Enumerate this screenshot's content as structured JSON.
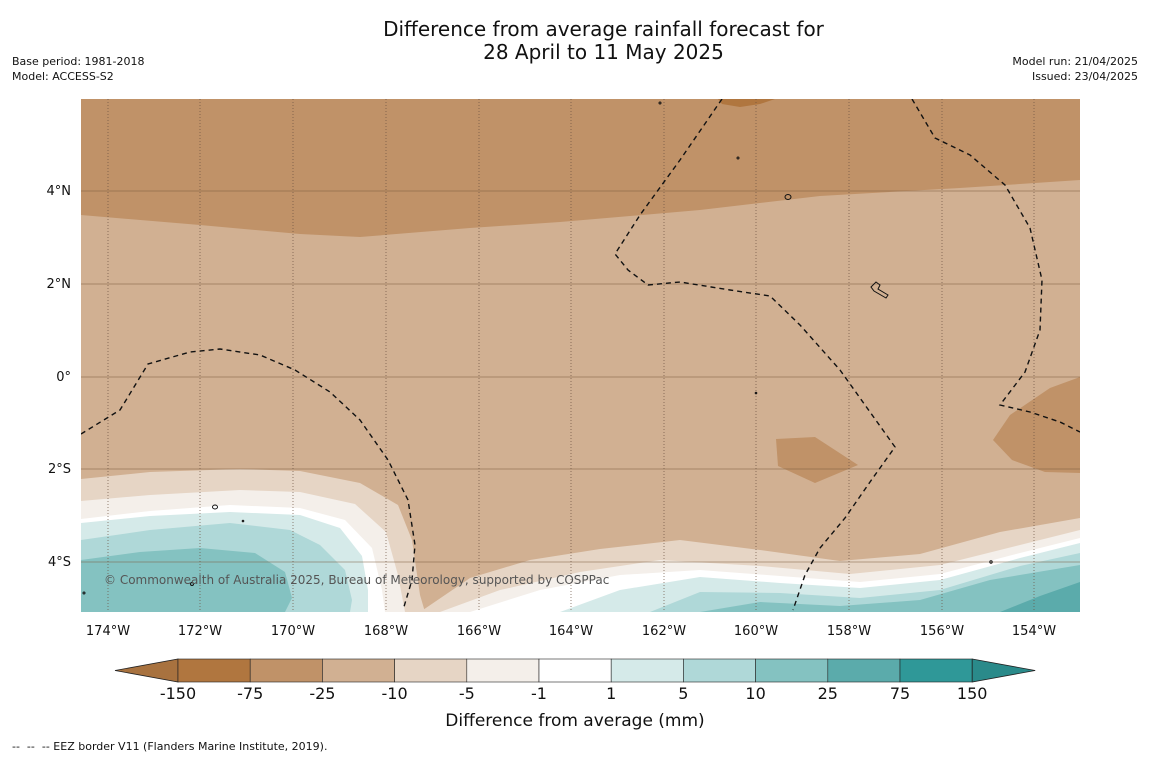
{
  "title": {
    "line1": "Difference from average rainfall forecast for",
    "line2": "28 April to 11 May 2025"
  },
  "meta_left": {
    "base_period": "Base period: 1981-2018",
    "model": "Model: ACCESS-S2"
  },
  "meta_right": {
    "model_run": "Model run: 21/04/2025",
    "issued": "Issued: 23/04/2025"
  },
  "map": {
    "lat_labels": [
      "4°N",
      "2°N",
      "0°",
      "2°S",
      "4°S"
    ],
    "lon_labels": [
      "174°W",
      "172°W",
      "170°W",
      "168°W",
      "166°W",
      "164°W",
      "162°W",
      "160°W",
      "158°W",
      "156°W",
      "154°W"
    ],
    "copyright": "© Commonwealth of Australia 2025, Bureau of Meteorology, supported by COSPPac"
  },
  "colorbar": {
    "tick_labels": [
      "-150",
      "-75",
      "-25",
      "-10",
      "-5",
      "-1",
      "1",
      "5",
      "10",
      "25",
      "75",
      "150"
    ],
    "colors": [
      "#a8723f",
      "#b0763f",
      "#c09268",
      "#d1b092",
      "#e6d5c5",
      "#f4efea",
      "#ffffff",
      "#d5eae9",
      "#afd8d8",
      "#84c2c1",
      "#5babab",
      "#2f9898",
      "#2a8a8a"
    ],
    "title": "Difference from average (mm)"
  },
  "footer": "--  --  -- EEZ border V11 (Flanders Marine Institute, 2019)."
}
